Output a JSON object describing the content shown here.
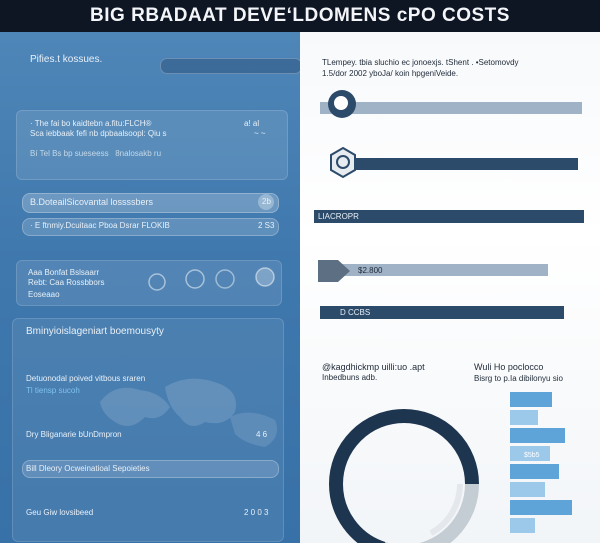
{
  "header": {
    "title": "BIG RBADAAT DEVEʻLDOMENS ᴄPO COSTS"
  },
  "left": {
    "heading": "Pifies.t kossues.",
    "block1": {
      "line1": "· The fai bo kaidtebn a.fitu:FLCH®",
      "line1_right": "a! al",
      "line2": "Sca iebbaak fefi nb dpbaalsoopl: Qiu s",
      "line2_right": "~ ~",
      "line3": "Bí  Tel Bs bp sueseess   8nalosakb  ru"
    },
    "row_a": {
      "label": "B.DoteailSicovantal lossssbers",
      "badge": "2b"
    },
    "row_b": {
      "label": "· E ftnmiy.Dcuitaac Pboa Dsrar FLOKIB",
      "badge": "2 S3"
    },
    "block2": {
      "line1": "Aaa Bonfat Bslsaarr",
      "line2": "Rebt: Caa Rossbbors",
      "line3": "Eoseaao"
    },
    "heading2": "Bminyioislageniart boemousyty",
    "map_caption": "Detuonodal poived vitbous sraren",
    "map_sub": "Tl tiensp sucoh",
    "row_c": {
      "label": "Dry Bliganarie bUnDmpron",
      "badge": "4 6"
    },
    "row_d": {
      "label": "Bill Dleory Ocweinatioal Sepoieties"
    },
    "row_e": {
      "label": "Geu Giw lovsibeed",
      "badge": "2 0 0 3"
    }
  },
  "right": {
    "intro_line1": "TLempey. tbia sluchio ec jonoexjs. tShent . •Setomovdy",
    "intro_line2": "1.5/dor 2002 yboJa/ koin hpgeniVeide.",
    "bars": [
      {
        "label": "",
        "value": 0.84
      },
      {
        "label": "",
        "value": 0.78
      },
      {
        "label": "LIACROPR",
        "value": 0.9
      },
      {
        "label": "$2.800",
        "value": 0.82
      },
      {
        "label": "D CCBS",
        "value": 0.79
      }
    ],
    "donut_title": "@kagdhickmp uilli:uo .apt",
    "donut_sub": "Inbedbuns adb.",
    "hist_title": "Wuli Ho poclocco",
    "hist_sub": "Bisrg to p.Ia dibilonyu sio",
    "hist_label": "$5b5",
    "hist_values": [
      0.48,
      0.32,
      0.62,
      0.45,
      0.56,
      0.4,
      0.7,
      0.28
    ]
  },
  "colors": {
    "navy": "#2c4a6a",
    "steel": "#9fb2c6",
    "sky": "#63a7da",
    "panel_blue": "#4a83b6"
  }
}
